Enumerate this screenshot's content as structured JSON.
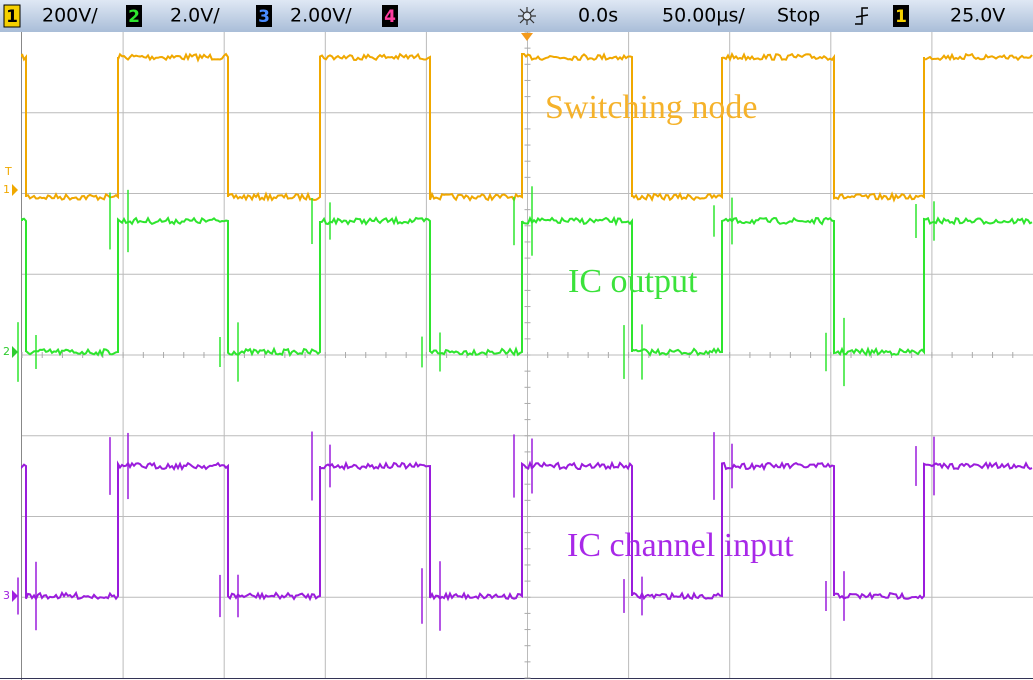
{
  "status_bar": {
    "channels": [
      {
        "number": "1",
        "scale": "200V/"
      },
      {
        "number": "2",
        "scale": "2.0V/"
      },
      {
        "number": "3",
        "scale": "2.00V/"
      },
      {
        "number": "4"
      }
    ],
    "time_offset": "0.0s",
    "time_scale": "50.00µs/",
    "run_state": "Stop",
    "trigger_source": "1",
    "trigger_level": "25.0V"
  },
  "markers": {
    "trigger": "T",
    "ch1": "1",
    "ch2": "2",
    "ch3": "3"
  },
  "traces": [
    {
      "label": "Switching node"
    },
    {
      "label": "IC output"
    },
    {
      "label": "IC channel input"
    }
  ]
}
